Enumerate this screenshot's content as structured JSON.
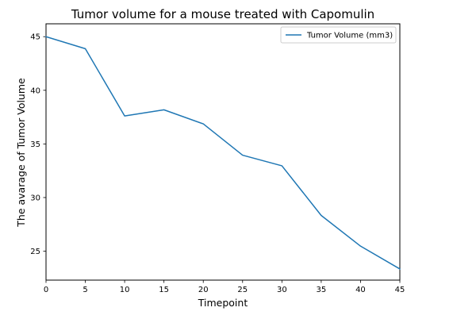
{
  "chart_data": {
    "type": "line",
    "title": "Tumor volume for a mouse treated with Capomulin",
    "xlabel": "Timepoint",
    "ylabel": "The avarage of Tumor Volume",
    "x": [
      0,
      5,
      10,
      15,
      20,
      25,
      30,
      35,
      40,
      45
    ],
    "xlim": [
      0,
      45
    ],
    "ylim": [
      22.3,
      46.2
    ],
    "xticks": [
      0,
      5,
      10,
      15,
      20,
      25,
      30,
      35,
      40,
      45
    ],
    "yticks": [
      25,
      30,
      35,
      40,
      45
    ],
    "grid": false,
    "legend_position": "top-right",
    "series": [
      {
        "name": "Tumor Volume (mm3)",
        "color": "#1f77b4",
        "values": [
          45.0,
          43.88,
          37.61,
          38.18,
          36.87,
          33.95,
          32.96,
          28.33,
          25.47,
          23.34
        ]
      }
    ]
  }
}
